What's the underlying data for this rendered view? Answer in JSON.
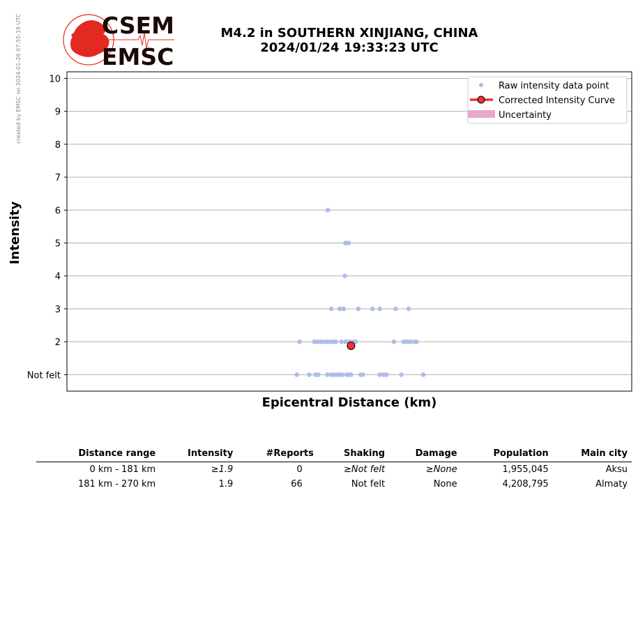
{
  "credit": "created by EMSC on 2024-01-26 07:55:19 UTC",
  "logo": {
    "line1": "CSEM",
    "line2": "EMSC"
  },
  "header": {
    "title_line1": "M4.2 in SOUTHERN XINJIANG, CHINA",
    "title_line2": "2024/01/24 19:33:23 UTC"
  },
  "colors": {
    "raw_points": "#aebde8",
    "curve": "#ee3333",
    "uncertainty": "#e8a8c8",
    "grid": "#b0b0b0",
    "logo_red": "#e32a22",
    "logo_dark": "#1a0a06"
  },
  "chart_data": {
    "type": "scatter",
    "xlabel": "Epicentral Distance (km)",
    "ylabel": "Intensity",
    "ylim": [
      0.5,
      10.2
    ],
    "y_ticks": [
      {
        "value": 1,
        "label": "Not felt"
      },
      {
        "value": 2,
        "label": "2"
      },
      {
        "value": 3,
        "label": "3"
      },
      {
        "value": 4,
        "label": "4"
      },
      {
        "value": 5,
        "label": "5"
      },
      {
        "value": 6,
        "label": "6"
      },
      {
        "value": 7,
        "label": "7"
      },
      {
        "value": 8,
        "label": "8"
      },
      {
        "value": 9,
        "label": "9"
      },
      {
        "value": 10,
        "label": "10"
      }
    ],
    "x_ticks_shown": false,
    "xlim": [
      0,
      100
    ],
    "grid": "horizontal",
    "legend_position": "top-right",
    "legend": [
      {
        "key": "raw",
        "label": "Raw intensity data point"
      },
      {
        "key": "curve",
        "label": "Corrected Intensity Curve"
      },
      {
        "key": "uncertainty",
        "label": "Uncertainty"
      }
    ],
    "raw_points": [
      {
        "x": 46.2,
        "y": 6
      },
      {
        "x": 49.3,
        "y": 5
      },
      {
        "x": 49.6,
        "y": 5
      },
      {
        "x": 49.9,
        "y": 5
      },
      {
        "x": 49.2,
        "y": 4
      },
      {
        "x": 46.8,
        "y": 3
      },
      {
        "x": 48.3,
        "y": 3
      },
      {
        "x": 49.0,
        "y": 3
      },
      {
        "x": 51.6,
        "y": 3
      },
      {
        "x": 54.1,
        "y": 3
      },
      {
        "x": 55.4,
        "y": 3
      },
      {
        "x": 58.2,
        "y": 3
      },
      {
        "x": 60.5,
        "y": 3
      },
      {
        "x": 41.2,
        "y": 2
      },
      {
        "x": 43.8,
        "y": 2
      },
      {
        "x": 44.3,
        "y": 2
      },
      {
        "x": 44.9,
        "y": 2
      },
      {
        "x": 45.4,
        "y": 2
      },
      {
        "x": 46.0,
        "y": 2
      },
      {
        "x": 46.6,
        "y": 2
      },
      {
        "x": 47.2,
        "y": 2
      },
      {
        "x": 47.6,
        "y": 2
      },
      {
        "x": 48.6,
        "y": 2
      },
      {
        "x": 49.3,
        "y": 2
      },
      {
        "x": 49.8,
        "y": 2
      },
      {
        "x": 50.2,
        "y": 2
      },
      {
        "x": 50.7,
        "y": 2
      },
      {
        "x": 51.1,
        "y": 2
      },
      {
        "x": 57.9,
        "y": 2
      },
      {
        "x": 59.6,
        "y": 2
      },
      {
        "x": 60.0,
        "y": 2
      },
      {
        "x": 60.4,
        "y": 2
      },
      {
        "x": 60.9,
        "y": 2
      },
      {
        "x": 61.6,
        "y": 2
      },
      {
        "x": 61.9,
        "y": 2
      },
      {
        "x": 40.7,
        "y": 1
      },
      {
        "x": 42.9,
        "y": 1
      },
      {
        "x": 44.0,
        "y": 1
      },
      {
        "x": 44.5,
        "y": 1
      },
      {
        "x": 46.1,
        "y": 1
      },
      {
        "x": 46.8,
        "y": 1
      },
      {
        "x": 47.3,
        "y": 1
      },
      {
        "x": 47.8,
        "y": 1
      },
      {
        "x": 48.3,
        "y": 1
      },
      {
        "x": 48.7,
        "y": 1
      },
      {
        "x": 49.5,
        "y": 1
      },
      {
        "x": 49.9,
        "y": 1
      },
      {
        "x": 50.3,
        "y": 1
      },
      {
        "x": 52.0,
        "y": 1
      },
      {
        "x": 52.4,
        "y": 1
      },
      {
        "x": 55.4,
        "y": 1
      },
      {
        "x": 56.1,
        "y": 1
      },
      {
        "x": 56.6,
        "y": 1
      },
      {
        "x": 59.2,
        "y": 1
      },
      {
        "x": 63.1,
        "y": 1
      }
    ],
    "corrected_curve": [
      {
        "x": 50.3,
        "y": 1.88
      }
    ]
  },
  "table": {
    "headers": [
      "Distance range",
      "Intensity",
      "#Reports",
      "Shaking",
      "Damage",
      "Population",
      "Main city"
    ],
    "rows": [
      {
        "distance": "0 km -  181 km",
        "intensity_prefix": "≥",
        "intensity": "1.9",
        "reports": "0",
        "shaking_prefix": "≥",
        "shaking": "Not felt",
        "damage_prefix": "≥",
        "damage": "None",
        "population": "1,955,045",
        "city": "Aksu"
      },
      {
        "distance": "181 km -  270 km",
        "intensity_prefix": "",
        "intensity": "1.9",
        "reports": "66",
        "shaking_prefix": "",
        "shaking": "Not felt",
        "damage_prefix": "",
        "damage": "None",
        "population": "4,208,795",
        "city": "Almaty"
      }
    ]
  }
}
